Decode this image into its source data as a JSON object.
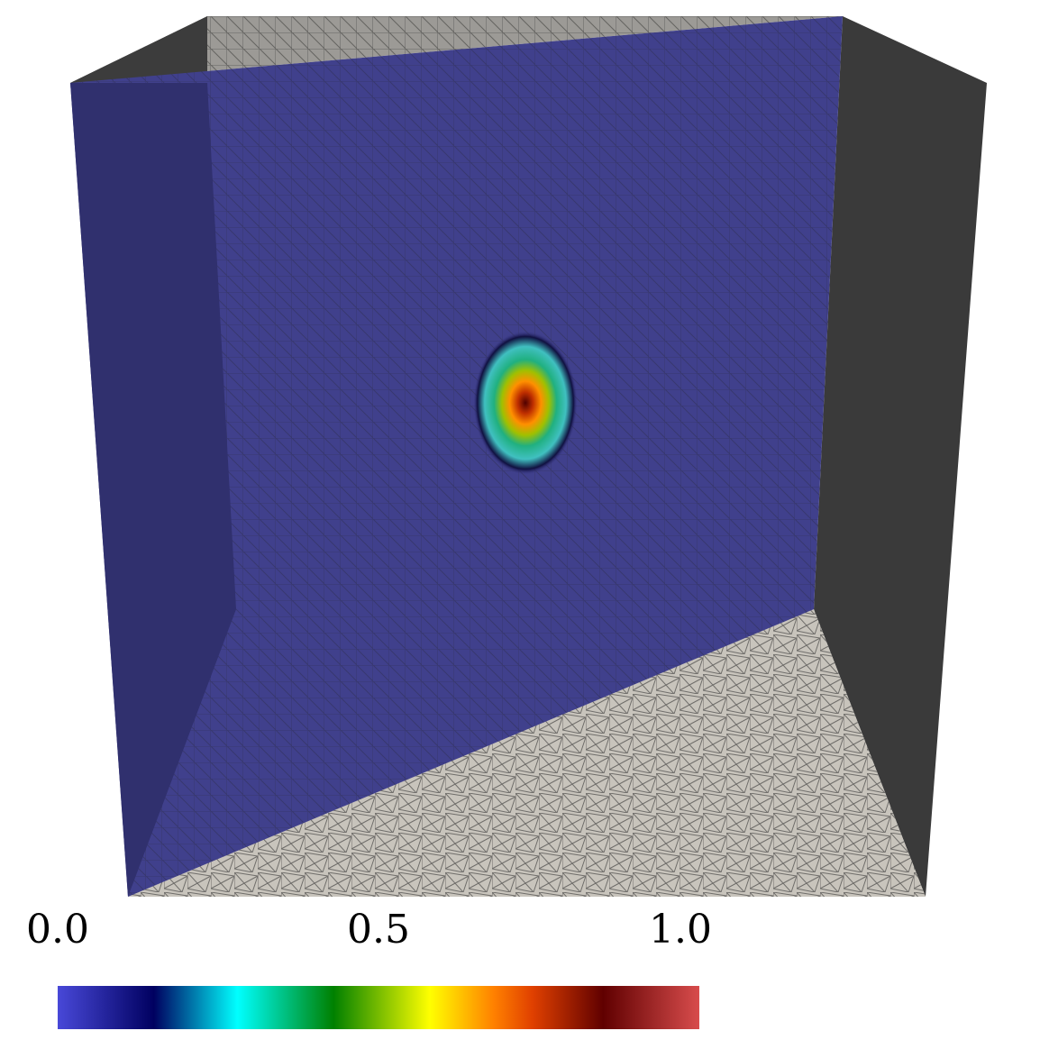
{
  "colorbar": {
    "range": [
      0,
      1
    ],
    "ticks": [
      {
        "value": 0,
        "label": "0.0"
      },
      {
        "value": 0.5,
        "label": "0.5"
      },
      {
        "value": 1,
        "label": "1.0"
      }
    ]
  }
}
